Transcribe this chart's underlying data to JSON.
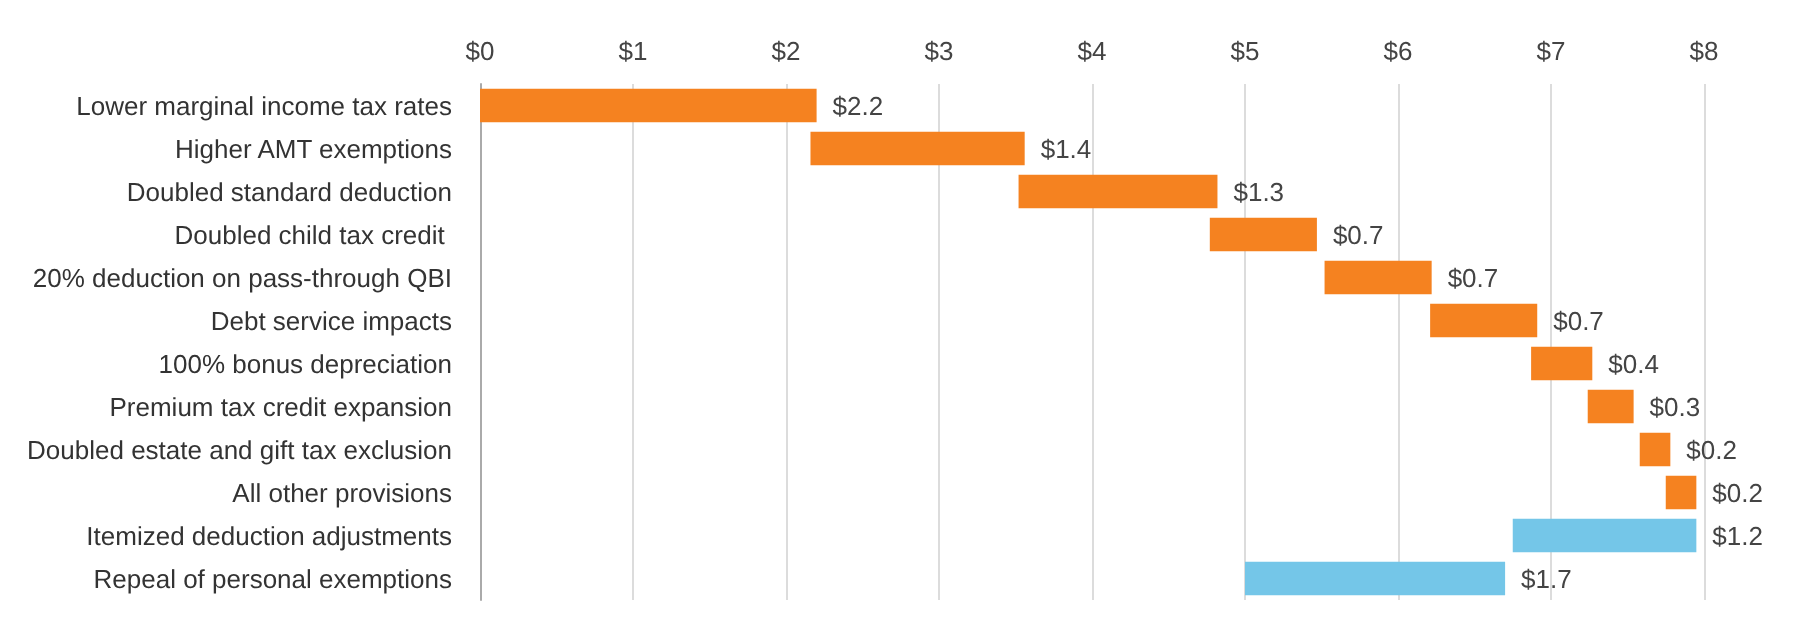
{
  "chart_data": {
    "type": "bar",
    "orientation": "horizontal",
    "categories": [
      "Lower marginal income tax rates",
      "Higher AMT exemptions",
      "Doubled standard deduction",
      "Doubled child tax credit ",
      "20% deduction on pass-through QBI",
      "Debt service impacts",
      "100% bonus depreciation",
      "Premium tax credit expansion",
      "Doubled estate and gift tax exclusion",
      "All other provisions",
      "Itemized deduction adjustments",
      "Repeal of personal exemptions"
    ],
    "values": [
      2.2,
      1.4,
      1.3,
      0.7,
      0.7,
      0.7,
      0.4,
      0.3,
      0.2,
      0.2,
      -1.2,
      -1.7
    ],
    "base": [
      0,
      2.16,
      3.52,
      4.77,
      5.52,
      6.21,
      6.87,
      7.24,
      7.58,
      7.75,
      7.95,
      6.7
    ],
    "colors": [
      "#f58220",
      "#f58220",
      "#f58220",
      "#f58220",
      "#f58220",
      "#f58220",
      "#f58220",
      "#f58220",
      "#f58220",
      "#f58220",
      "#74c6e8",
      "#74c6e8"
    ],
    "value_labels": [
      "$2.2",
      "$1.4",
      "$1.3",
      "$0.7",
      "$0.7",
      "$0.7",
      "$0.4",
      "$0.3",
      "$0.2",
      "$0.2",
      "$1.2",
      "$1.7"
    ],
    "xlim": [
      0,
      8
    ],
    "xticks": [
      {
        "value": 0,
        "label": "$0"
      },
      {
        "value": 1,
        "label": "$1"
      },
      {
        "value": 2,
        "label": "$2"
      },
      {
        "value": 3,
        "label": "$3"
      },
      {
        "value": 4,
        "label": "$4"
      },
      {
        "value": 5,
        "label": "$5"
      },
      {
        "value": 6,
        "label": "$6"
      },
      {
        "value": 7,
        "label": "$7"
      },
      {
        "value": 8,
        "label": "$8"
      }
    ],
    "grid": "x"
  }
}
